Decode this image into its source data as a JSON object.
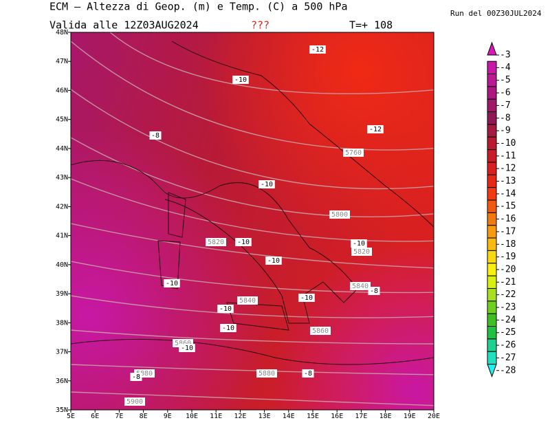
{
  "header": {
    "title": "ECM – Altezza di Geop. (m) e Temp. (C) a 500 hPa",
    "run": "Run del 00Z30JUL2024",
    "valid": "Valida alle 12Z03AUG2024",
    "flag": "???",
    "step": "T=+ 108"
  },
  "map": {
    "lat_labels": [
      "48N",
      "47N",
      "46N",
      "45N",
      "44N",
      "43N",
      "42N",
      "41N",
      "40N",
      "39N",
      "38N",
      "37N",
      "36N",
      "35N"
    ],
    "lon_labels": [
      "5E",
      "6E",
      "7E",
      "8E",
      "9E",
      "10E",
      "11E",
      "12E",
      "13E",
      "14E",
      "15E",
      "16E",
      "17E",
      "18E",
      "19E",
      "20E"
    ],
    "contour_labels": [
      "-12",
      "-10",
      "-8",
      "-12",
      "5760",
      "-10",
      "5800",
      "5820",
      "-10",
      "-10",
      "5820",
      "-10",
      "-10",
      "5840",
      "-8",
      "5840",
      "-10",
      "-10",
      "-10",
      "5860",
      "5860",
      "-10",
      "5880",
      "-8",
      "5880",
      "-8",
      "5900"
    ]
  },
  "colorbar": {
    "labels": [
      "-3",
      "-4",
      "-5",
      "-6",
      "-7",
      "-8",
      "-9",
      "-10",
      "-11",
      "-12",
      "-13",
      "-14",
      "-15",
      "-16",
      "-17",
      "-18",
      "-19",
      "-20",
      "-21",
      "-22",
      "-23",
      "-24",
      "-25",
      "-26",
      "-27",
      "-28"
    ],
    "colors": [
      "#d818b8",
      "#c818a4",
      "#bc1892",
      "#ac1880",
      "#a01868",
      "#901854",
      "#a41a40",
      "#b81a32",
      "#c81c28",
      "#d82020",
      "#e62818",
      "#f03c10",
      "#f05a10",
      "#f07a10",
      "#f89a10",
      "#f8ba10",
      "#f8d810",
      "#f8f010",
      "#d8f010",
      "#a8e020",
      "#70d020",
      "#40c020",
      "#20c040",
      "#20d090",
      "#20e0c0",
      "#20f0f0"
    ]
  }
}
